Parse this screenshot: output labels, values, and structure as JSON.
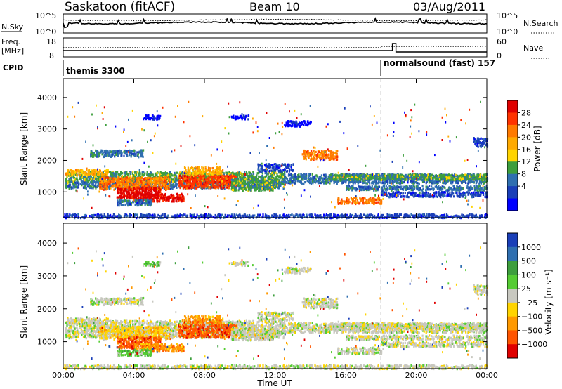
{
  "header": {
    "station": "Saskatoon (fitACF)",
    "beam": "Beam 10",
    "date": "03/Aug/2011"
  },
  "noise_panel": {
    "left_label": "N.Sky",
    "right_label": "N.Search",
    "left_ticks": [
      "10^5",
      "10^0"
    ],
    "right_ticks": [
      "10^5",
      "10^0"
    ]
  },
  "freq_panel": {
    "left_label_line1": "Freq.",
    "left_label_line2": "[MHz]",
    "right_label": "Nave",
    "left_ticks": [
      "18",
      "8"
    ],
    "right_ticks": [
      "60",
      "0"
    ]
  },
  "cpid_panel": {
    "label": "CPID",
    "modes": [
      {
        "name": "themis 3300",
        "start_hour": 0
      },
      {
        "name": "normalsound (fast) 157",
        "start_hour": 18.0
      }
    ]
  },
  "chart_data": [
    {
      "type": "heatmap",
      "name": "power",
      "ylabel": "Slant Range [km]",
      "xlabel": "Time UT",
      "ylim": [
        180,
        4600
      ],
      "xlim": [
        0,
        24
      ],
      "y_ticks": [
        "1000",
        "2000",
        "3000",
        "4000"
      ],
      "x_ticks": [
        "00:00",
        "04:00",
        "08:00",
        "12:00",
        "16:00",
        "20:00",
        "00:00"
      ],
      "colorbar": {
        "label": "Power [dB]",
        "tick_labels": [
          "28",
          "24",
          "20",
          "16",
          "12",
          "8",
          "4"
        ],
        "colors": [
          "#e00000",
          "#ff3300",
          "#ff7a00",
          "#ffaa00",
          "#ffd400",
          "#3d9e3d",
          "#2f6fb0",
          "#1a3fb8",
          "#0000ff"
        ]
      }
    },
    {
      "type": "heatmap",
      "name": "velocity",
      "ylabel": "Slant Range [km]",
      "xlabel": "Time UT",
      "ylim": [
        180,
        4600
      ],
      "xlim": [
        0,
        24
      ],
      "y_ticks": [
        "1000",
        "2000",
        "3000",
        "4000"
      ],
      "x_ticks": [
        "00:00",
        "04:00",
        "08:00",
        "12:00",
        "16:00",
        "20:00",
        "00:00"
      ],
      "colorbar": {
        "label": "Velocity [m s⁻¹]",
        "tick_labels": [
          "1000",
          "500",
          "100",
          "25",
          "−25",
          "−100",
          "−500",
          "−1000"
        ],
        "colors": [
          "#1a3fb8",
          "#2f6fb0",
          "#3d9e3d",
          "#55cc33",
          "#c8c8c0",
          "#ffd400",
          "#ff9900",
          "#ff5500",
          "#e00000"
        ]
      }
    }
  ],
  "x_axis_title": "Time UT"
}
